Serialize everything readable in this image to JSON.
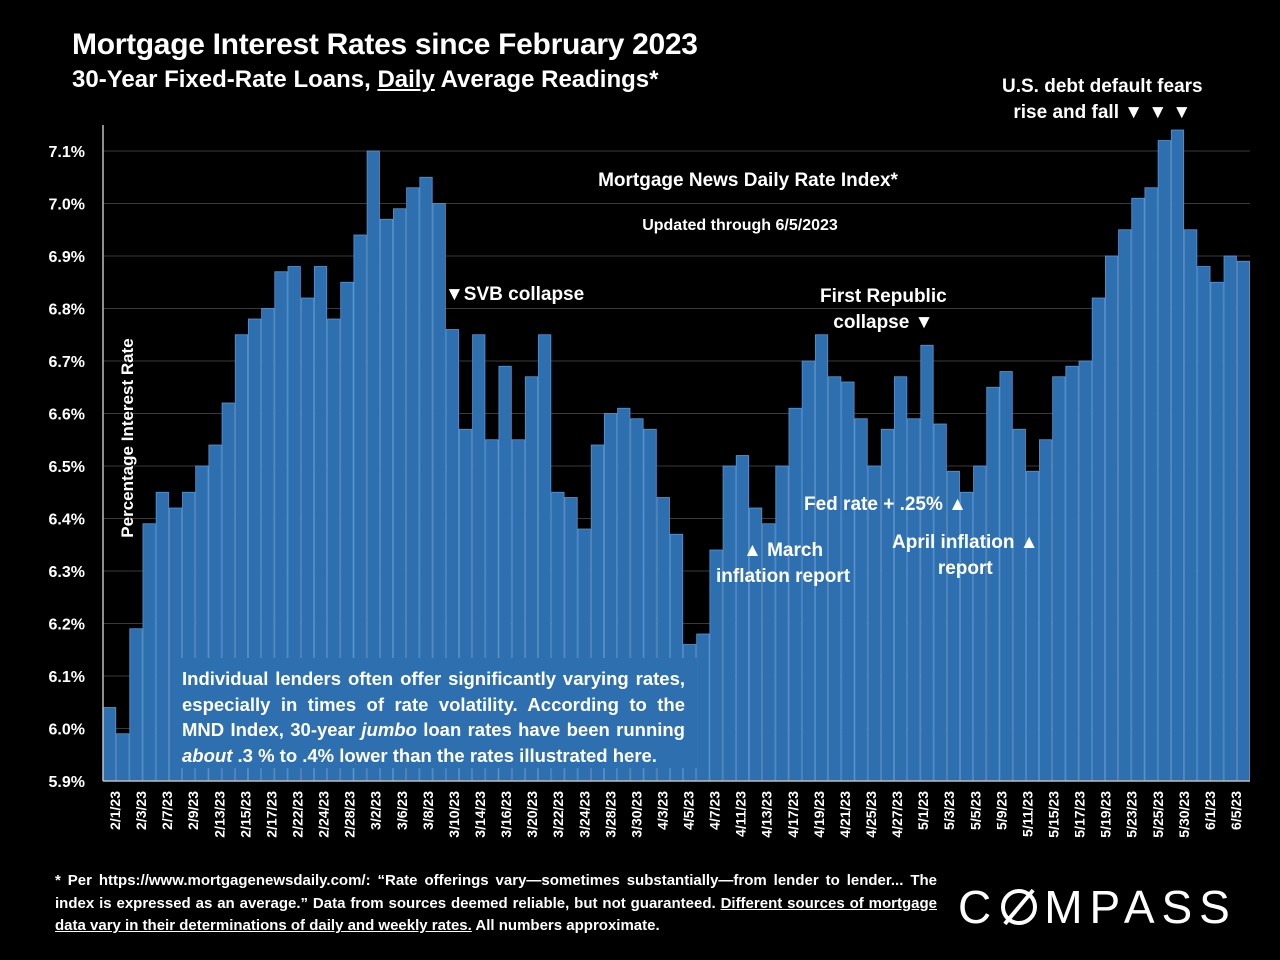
{
  "title": "Mortgage Interest Rates since February 2023",
  "subtitle_pre": "30-Year Fixed-Rate Loans, ",
  "subtitle_u": "Daily",
  "subtitle_post": " Average Readings*",
  "colors": {
    "bar": "#2e6fb0",
    "bar_edge": "#5a95cf",
    "grid": "#3a3a3a",
    "background": "#000000"
  },
  "chart_data": {
    "type": "bar",
    "title": "Mortgage News Daily Rate Index*",
    "subtitle": "Updated through 6/5/2023",
    "ylabel": "Percentage Interest  Rate",
    "xlabel": "",
    "ylim": [
      5.9,
      7.15
    ],
    "yticks": [
      "7.1%",
      "7.0%",
      "6.9%",
      "6.8%",
      "6.7%",
      "6.6%",
      "6.5%",
      "6.4%",
      "6.3%",
      "6.2%",
      "6.1%",
      "6.0%",
      "5.9%"
    ],
    "ytick_values": [
      7.1,
      7.0,
      6.9,
      6.8,
      6.7,
      6.6,
      6.5,
      6.4,
      6.3,
      6.2,
      6.1,
      6.0,
      5.9
    ],
    "xtick_labels": [
      "2/1/23",
      "2/3/23",
      "2/7/23",
      "2/9/23",
      "2/13/23",
      "2/15/23",
      "2/17/23",
      "2/22/23",
      "2/24/23",
      "2/28/23",
      "3/2/23",
      "3/6/23",
      "3/8/23",
      "3/10/23",
      "3/14/23",
      "3/16/23",
      "3/20/23",
      "3/22/23",
      "3/24/23",
      "3/28/23",
      "3/30/23",
      "4/3/23",
      "4/5/23",
      "4/7/23",
      "4/11/23",
      "4/13/23",
      "4/17/23",
      "4/19/23",
      "4/21/23",
      "4/25/23",
      "4/27/23",
      "5/1/23",
      "5/3/23",
      "5/5/23",
      "5/9/23",
      "5/11/23",
      "5/15/23",
      "5/17/23",
      "5/19/23",
      "5/23/23",
      "5/25/23",
      "5/30/23",
      "6/1/23",
      "6/5/23"
    ],
    "values": [
      6.04,
      5.99,
      6.19,
      6.39,
      6.45,
      6.42,
      6.45,
      6.5,
      6.54,
      6.62,
      6.75,
      6.78,
      6.8,
      6.87,
      6.88,
      6.82,
      6.88,
      6.78,
      6.85,
      6.94,
      7.1,
      6.97,
      6.99,
      7.03,
      7.05,
      7.0,
      6.76,
      6.57,
      6.75,
      6.55,
      6.69,
      6.55,
      6.67,
      6.75,
      6.45,
      6.44,
      6.38,
      6.54,
      6.6,
      6.61,
      6.59,
      6.57,
      6.44,
      6.37,
      6.16,
      6.18,
      6.34,
      6.5,
      6.52,
      6.42,
      6.39,
      6.5,
      6.61,
      6.7,
      6.75,
      6.67,
      6.66,
      6.59,
      6.5,
      6.57,
      6.67,
      6.59,
      6.73,
      6.58,
      6.49,
      6.45,
      6.5,
      6.65,
      6.68,
      6.57,
      6.49,
      6.55,
      6.67,
      6.69,
      6.7,
      6.82,
      6.9,
      6.95,
      7.01,
      7.03,
      7.12,
      7.14,
      6.95,
      6.88,
      6.85,
      6.9,
      6.89
    ],
    "annotations": {
      "svb": "▼SVB collapse",
      "first_republic": "First Republic collapse ▼",
      "first_republic_l1": "First Republic",
      "first_republic_l2": "collapse ▼",
      "march_l1": "▲ March",
      "march_l2": "inflation report",
      "fed": "Fed rate + .25% ▲",
      "april_l1": "April inflation ▲",
      "april_l2": "report",
      "debt_l1": "U.S. debt default fears",
      "debt_l2": "rise and fall ▼  ▼  ▼"
    }
  },
  "note": {
    "p1": "Individual lenders often offer significantly varying rates, especially in times of rate volatility. According to the MND Index, 30-year ",
    "jumbo": "jumbo",
    "p2": " loan rates have been running ",
    "about": "about",
    "p3": " .3 % to .4% lower than the rates illustrated here."
  },
  "footnote": {
    "text": "* Per https://www.mortgagenewsdaily.com/: “Rate offerings vary—sometimes substantially—from lender to lender... The index is expressed as an average.” Data from sources deemed reliable, but not guaranteed. ",
    "underlined": "Different sources of mortgage data vary in their determinations of daily and weekly rates.",
    "tail": " All numbers approximate."
  },
  "logo": {
    "pre": "C",
    "post": "MPASS",
    "full": "COMPASS"
  }
}
